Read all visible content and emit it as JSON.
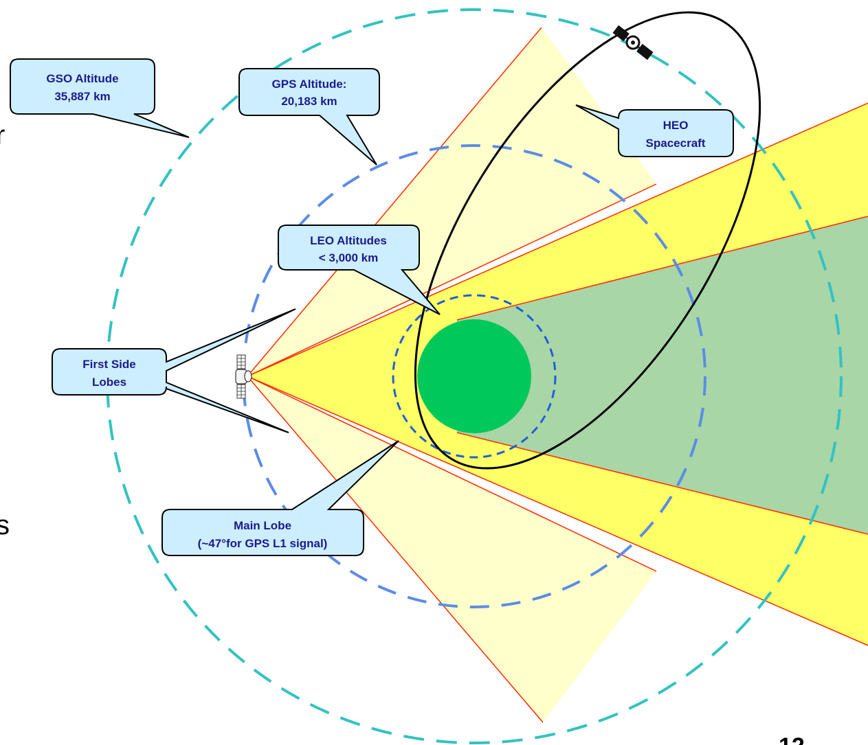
{
  "colors": {
    "gso_ring": "#33c2c2",
    "gps_ring": "#5b8ce6",
    "leo_ring": "#1f5fd6",
    "earth": "#00c85a",
    "shadow": "#a8d6a6",
    "main_lobe": "#ffff66",
    "side_lobe": "#ffffcc",
    "beam_edge": "#ff2a00",
    "callout_fill": "#cceeff",
    "callout_text": "#1a1a8c",
    "orbit": "#000000"
  },
  "callouts": {
    "gso": {
      "line1": "GSO Altitude",
      "line2": "35,887 km"
    },
    "gps": {
      "line1": "GPS Altitude:",
      "line2": "20,183 km"
    },
    "heo": {
      "line1": "HEO",
      "line2": "Spacecraft"
    },
    "leo": {
      "line1": "LEO Altitudes",
      "line2": "< 3,000 km"
    },
    "side_lobes": {
      "line1": "First Side",
      "line2": "Lobes"
    },
    "main_lobe": {
      "line1": "Main Lobe",
      "line2": "(~47°for GPS L1 signal)"
    }
  },
  "page_number": "12",
  "edge_text": {
    "top": "r",
    "bottom": "s"
  },
  "icons": {
    "gps_satellite": "satellite-icon",
    "heo_satellite": "satellite-icon"
  }
}
